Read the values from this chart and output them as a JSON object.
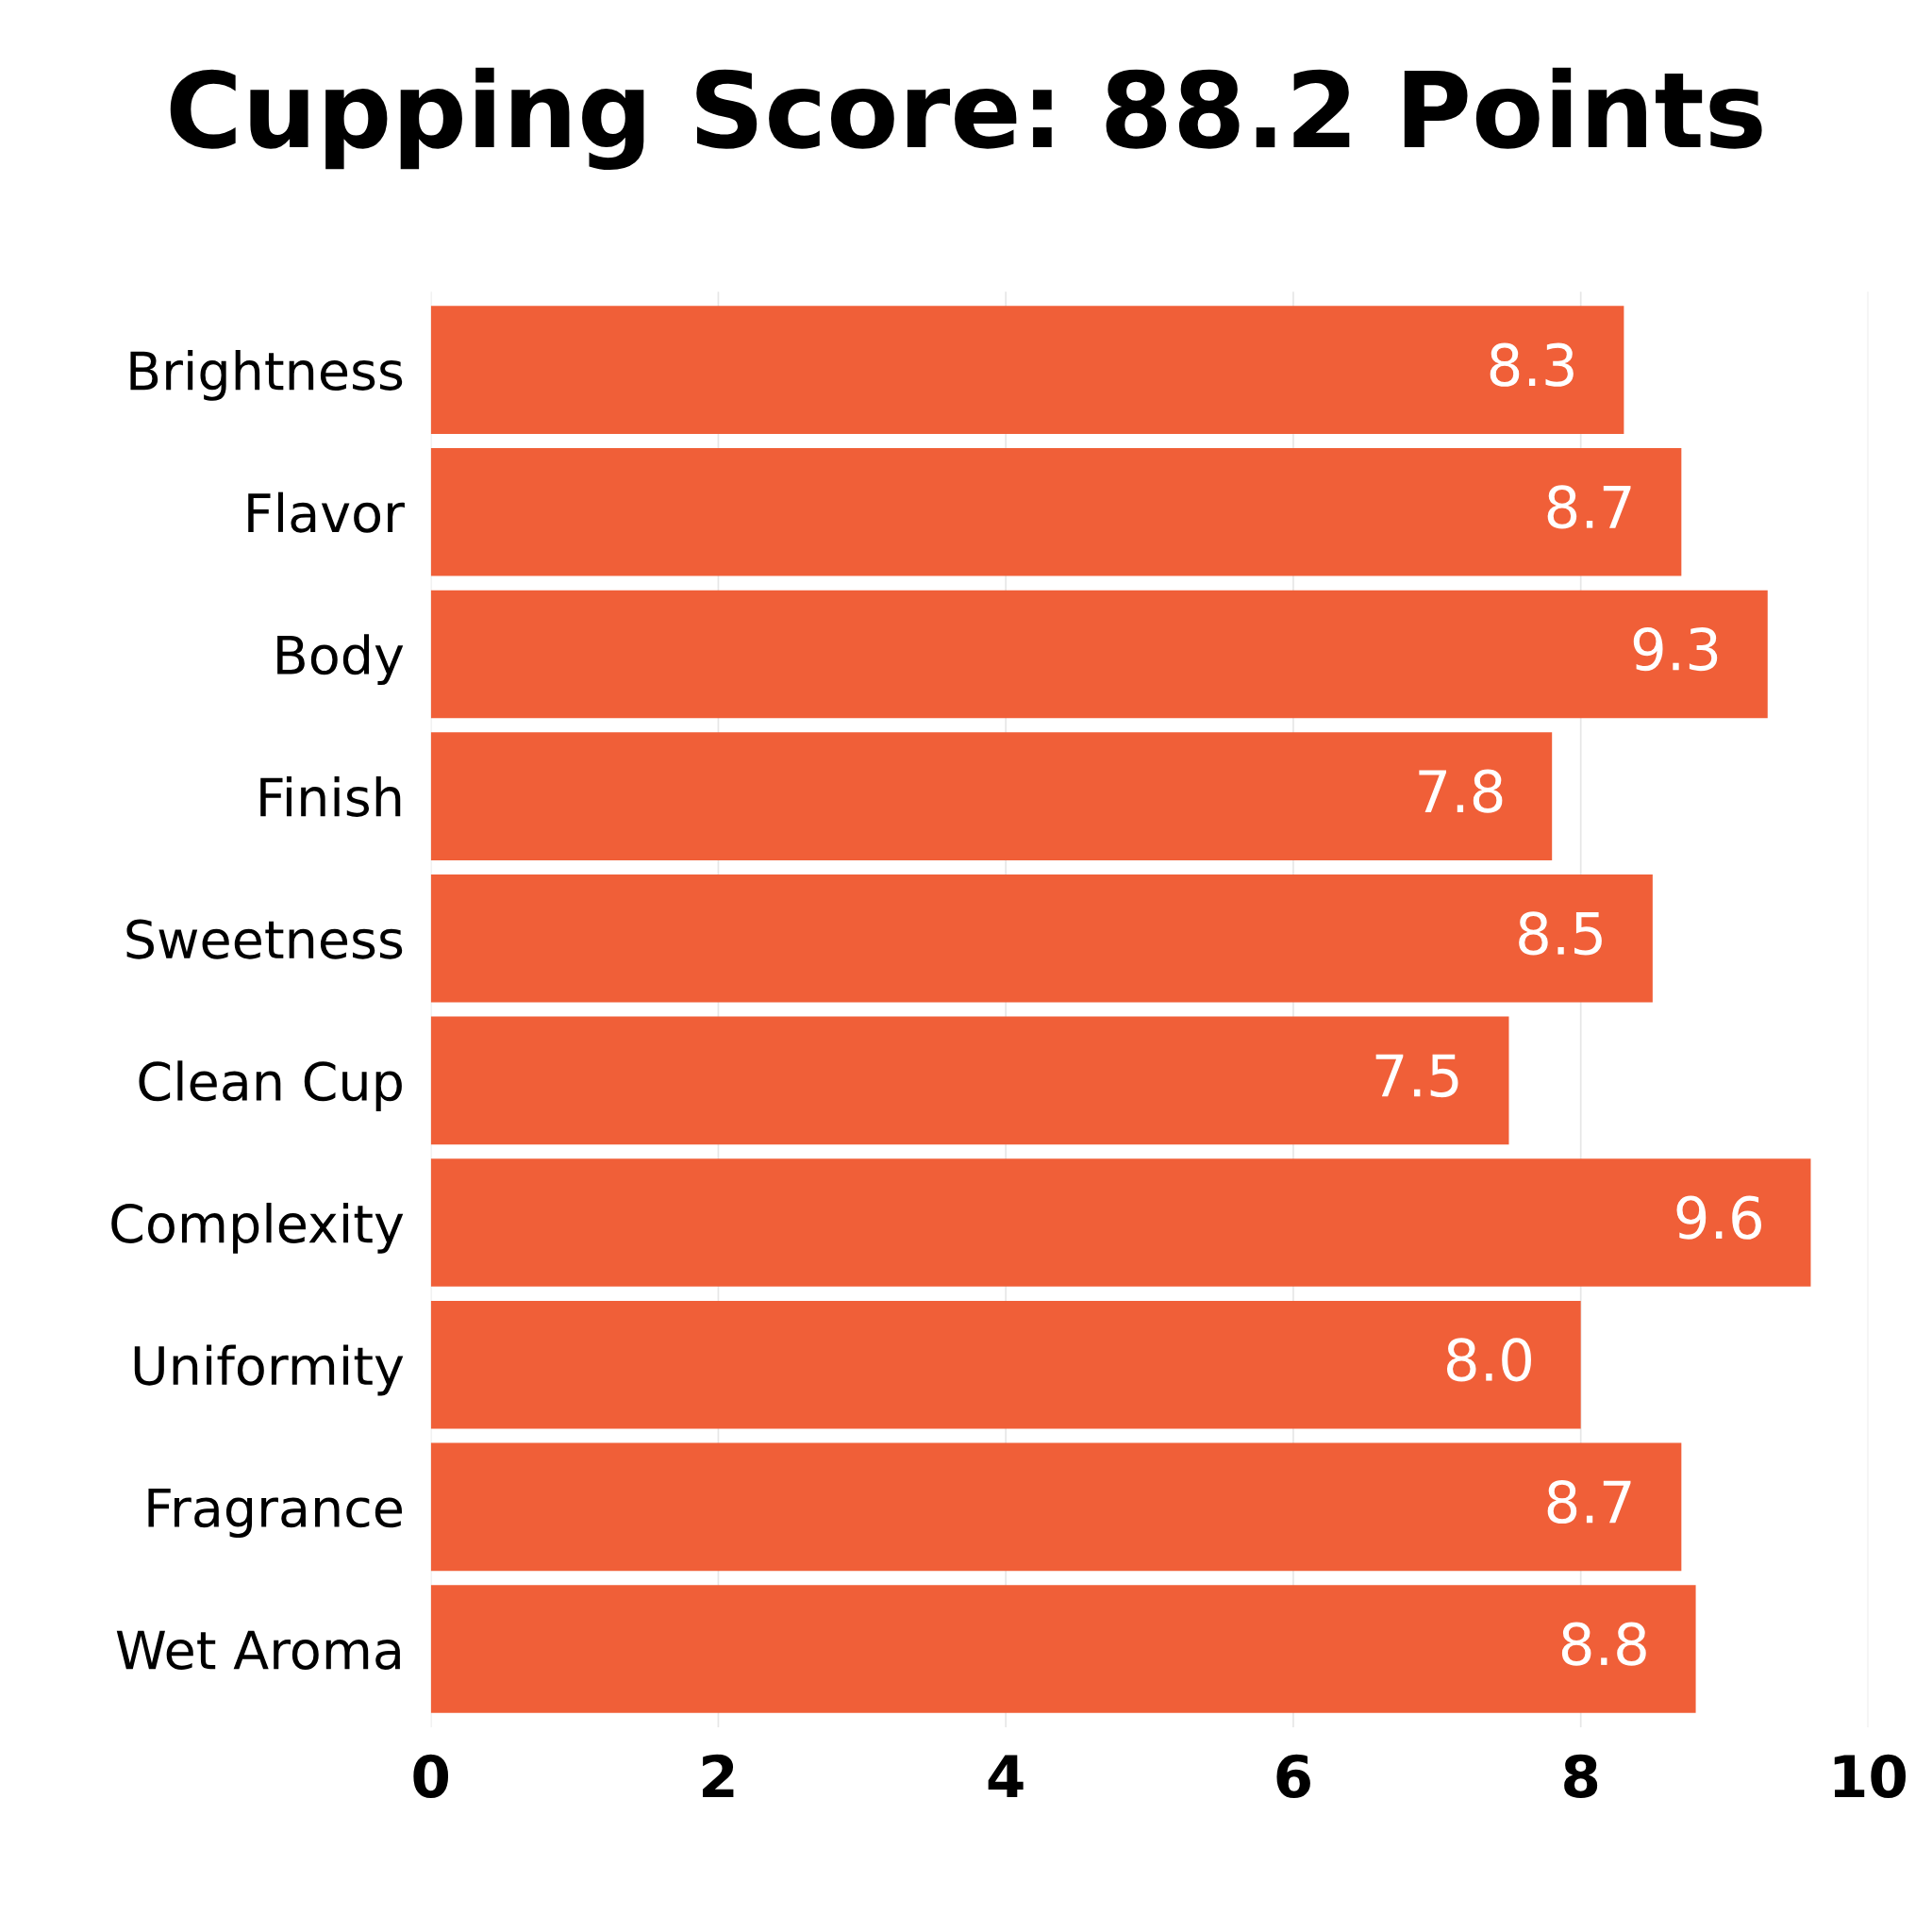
{
  "chart_data": {
    "type": "bar",
    "orientation": "horizontal",
    "title": "Cupping Score: 88.2 Points",
    "categories": [
      "Brightness",
      "Flavor",
      "Body",
      "Finish",
      "Sweetness",
      "Clean Cup",
      "Complexity",
      "Uniformity",
      "Fragrance",
      "Wet Aroma"
    ],
    "values": [
      8.3,
      8.7,
      9.3,
      7.8,
      8.5,
      7.5,
      9.6,
      8.0,
      8.7,
      8.8
    ],
    "value_labels": [
      "8.3",
      "8.7",
      "9.3",
      "7.8",
      "8.5",
      "7.5",
      "9.6",
      "8.0",
      "8.7",
      "8.8"
    ],
    "color": "#f05f38",
    "xlim": [
      0,
      10
    ],
    "xticks": [
      0,
      2,
      4,
      6,
      8,
      10
    ],
    "grid": "x",
    "legend": false
  }
}
